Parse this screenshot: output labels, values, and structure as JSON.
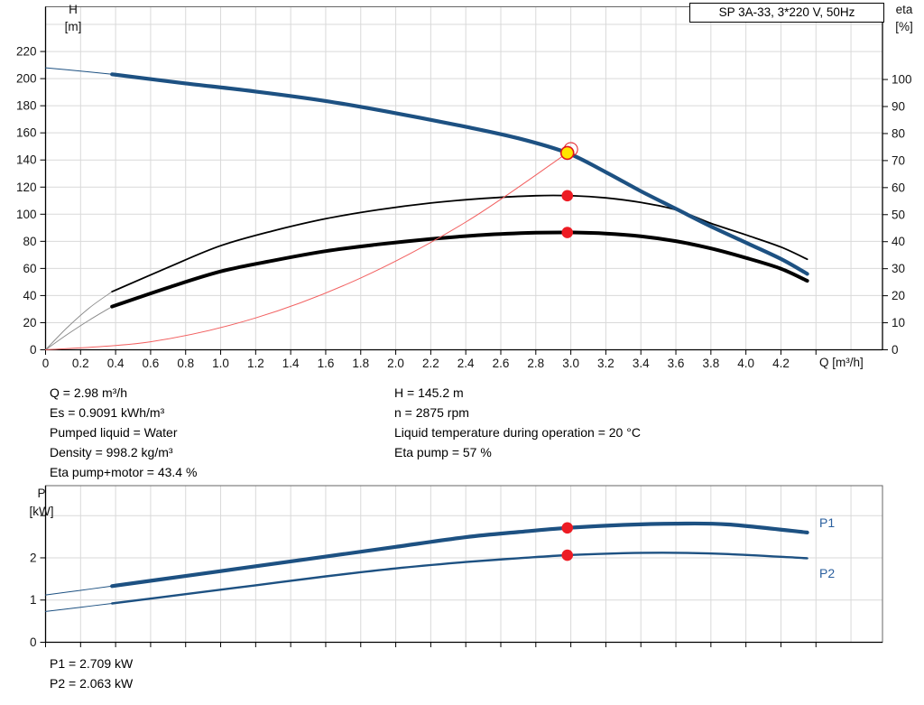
{
  "title_box": "SP 3A-33, 3*220 V, 50Hz",
  "axis_labels": {
    "h": "H",
    "h_unit": "[m]",
    "eta": "eta",
    "eta_unit": "[%]",
    "q": "Q [m³/h]",
    "p": "P",
    "p_unit": "[kW]"
  },
  "curve_labels": {
    "p1": "P1",
    "p2": "P2"
  },
  "annotations": {
    "left": [
      "Q = 2.98 m³/h",
      "Es = 0.9091 kWh/m³",
      "Pumped liquid = Water",
      "Density = 998.2 kg/m³",
      "Eta pump+motor = 43.4 %"
    ],
    "right": [
      "H = 145.2 m",
      "n = 2875 rpm",
      "Liquid temperature during operation = 20 °C",
      "Eta pump = 57 %"
    ],
    "results": [
      "P1 = 2.709 kW",
      "P2 = 2.063 kW"
    ]
  },
  "colors": {
    "curve_blue": "#1d5182",
    "curve_black": "#000000",
    "lead_gray": "#888888",
    "system_red": "#f26060",
    "marker_red": "#ed1c24",
    "duty_yellow": "#ffe600",
    "duty_ring_red": "#e1131d",
    "grid": "#d9d9d9",
    "border": "#666666",
    "axis": "#000000",
    "label_blue": "#2a5f9e"
  },
  "chart_data": [
    {
      "id": "qh-eta-chart",
      "type": "line",
      "title": "SP 3A-33, 3*220 V, 50Hz",
      "xlabel": "Q [m³/h]",
      "ylabel_left": "H [m]",
      "ylabel_right": "eta [%]",
      "grid": true,
      "x_axis": {
        "min": 0,
        "max": 4.78,
        "tick_step": 0.2,
        "tick_max": 4.4,
        "label_max": 4.2,
        "grid_max": 4.6,
        "show_labels": true
      },
      "y_left": {
        "min": 0,
        "max": 253,
        "tick_step": 20,
        "tick_max": 220,
        "label_max": 220,
        "grid_max": 240
      },
      "y_right": {
        "min": 0,
        "max": 126.9,
        "tick_step": 10,
        "tick_max": 100,
        "label_max": 100
      },
      "series": [
        {
          "name": "eta-pump-leadin",
          "axis": "eta",
          "color": "#888888",
          "width": 0.9,
          "points": [
            [
              0,
              0
            ],
            [
              0.12,
              8
            ],
            [
              0.25,
              15.5
            ],
            [
              0.38,
              21.5
            ]
          ]
        },
        {
          "name": "eta-pump-curve",
          "axis": "eta",
          "color": "#000000",
          "width": 1.8,
          "points": [
            [
              0.38,
              21.5
            ],
            [
              0.7,
              30.5
            ],
            [
              1.0,
              38.5
            ],
            [
              1.3,
              44
            ],
            [
              1.6,
              48.5
            ],
            [
              1.9,
              51.8
            ],
            [
              2.2,
              54.3
            ],
            [
              2.5,
              56
            ],
            [
              2.8,
              57
            ],
            [
              3.0,
              57
            ],
            [
              3.2,
              56.2
            ],
            [
              3.4,
              54.5
            ],
            [
              3.6,
              51.8
            ],
            [
              3.8,
              46.8
            ],
            [
              4.0,
              42.5
            ],
            [
              4.2,
              38
            ],
            [
              4.35,
              33.5
            ]
          ]
        },
        {
          "name": "eta-pump-motor-leadin",
          "axis": "eta",
          "color": "#888888",
          "width": 0.9,
          "points": [
            [
              0,
              0
            ],
            [
              0.12,
              5.5
            ],
            [
              0.25,
              11
            ],
            [
              0.38,
              16
            ]
          ]
        },
        {
          "name": "eta-pump-motor-curve",
          "axis": "eta",
          "color": "#000000",
          "width": 4,
          "points": [
            [
              0.38,
              16
            ],
            [
              0.7,
              23
            ],
            [
              1.0,
              29
            ],
            [
              1.3,
              33
            ],
            [
              1.6,
              36.5
            ],
            [
              1.9,
              39
            ],
            [
              2.2,
              41
            ],
            [
              2.5,
              42.5
            ],
            [
              2.8,
              43.3
            ],
            [
              3.0,
              43.4
            ],
            [
              3.2,
              43
            ],
            [
              3.4,
              42
            ],
            [
              3.6,
              40.2
            ],
            [
              3.8,
              37.5
            ],
            [
              4.0,
              34
            ],
            [
              4.2,
              30
            ],
            [
              4.35,
              25.5
            ]
          ]
        },
        {
          "name": "system-curve",
          "axis": "H",
          "color": "#f26060",
          "width": 1,
          "points": [
            [
              0,
              0
            ],
            [
              0.6,
              5.9
            ],
            [
              1.2,
              23.5
            ],
            [
              1.8,
              53
            ],
            [
              2.4,
              94.2
            ],
            [
              2.98,
              145.2
            ]
          ]
        },
        {
          "name": "head-curve-leadin",
          "axis": "H",
          "color": "#1d5182",
          "width": 1,
          "points": [
            [
              0,
              208
            ],
            [
              0.2,
              205.6
            ],
            [
              0.38,
              203.2
            ]
          ]
        },
        {
          "name": "head-curve",
          "axis": "H",
          "color": "#1d5182",
          "width": 4.2,
          "points": [
            [
              0.38,
              203.2
            ],
            [
              0.8,
              196.5
            ],
            [
              1.2,
              190.5
            ],
            [
              1.6,
              183.5
            ],
            [
              2.0,
              174.5
            ],
            [
              2.4,
              164.5
            ],
            [
              2.7,
              156
            ],
            [
              2.98,
              145.2
            ],
            [
              3.2,
              131
            ],
            [
              3.4,
              117
            ],
            [
              3.6,
              104
            ],
            [
              3.8,
              91
            ],
            [
              4.0,
              79
            ],
            [
              4.2,
              67
            ],
            [
              4.35,
              56
            ]
          ]
        }
      ],
      "markers": [
        {
          "name": "duty-point-requested",
          "axis": "H",
          "q": 3.0,
          "value": 147.8,
          "r": 7.5,
          "fill": "none",
          "stroke": "#e1131d",
          "stroke_width": 1
        },
        {
          "name": "duty-point",
          "axis": "H",
          "q": 2.98,
          "value": 145.2,
          "r": 7,
          "fill": "#ffe600",
          "stroke": "#e1131d",
          "stroke_width": 1.6
        },
        {
          "name": "eta-pump-point",
          "axis": "eta",
          "q": 2.98,
          "value": 57,
          "r": 6.3,
          "fill": "#ed1c24",
          "stroke": "none",
          "stroke_width": 0
        },
        {
          "name": "eta-pump-motor-point",
          "axis": "eta",
          "q": 2.98,
          "value": 43.4,
          "r": 6.3,
          "fill": "#ed1c24",
          "stroke": "none",
          "stroke_width": 0
        }
      ],
      "duty_point": {
        "Q": 2.98,
        "H": 145.2,
        "eta_pump": 57,
        "eta_pump_motor": 43.4
      }
    },
    {
      "id": "power-chart",
      "type": "line",
      "xlabel": "",
      "ylabel_left": "P [kW]",
      "grid": true,
      "x_axis": {
        "min": 0,
        "max": 4.78,
        "tick_step": 0.2,
        "tick_max": 4.4,
        "label_max": 4.2,
        "grid_max": 4.6,
        "show_labels": false
      },
      "y_left": {
        "min": 0,
        "max": 3.71,
        "tick_step": 1,
        "tick_max": 3,
        "label_max": 2,
        "grid_max": 3
      },
      "series": [
        {
          "name": "p1-leadin",
          "axis": "P",
          "color": "#1d5182",
          "width": 1,
          "points": [
            [
              0,
              1.12
            ],
            [
              0.2,
              1.23
            ],
            [
              0.38,
              1.33
            ]
          ]
        },
        {
          "name": "p1-curve",
          "axis": "P",
          "color": "#1d5182",
          "width": 4.2,
          "points": [
            [
              0.38,
              1.33
            ],
            [
              0.8,
              1.57
            ],
            [
              1.2,
              1.8
            ],
            [
              1.6,
              2.03
            ],
            [
              2.0,
              2.26
            ],
            [
              2.4,
              2.49
            ],
            [
              2.7,
              2.61
            ],
            [
              2.98,
              2.709
            ],
            [
              3.3,
              2.78
            ],
            [
              3.6,
              2.81
            ],
            [
              3.9,
              2.79
            ],
            [
              4.35,
              2.6
            ]
          ]
        },
        {
          "name": "p2-leadin",
          "axis": "P",
          "color": "#1d5182",
          "width": 1,
          "points": [
            [
              0,
              0.73
            ],
            [
              0.2,
              0.83
            ],
            [
              0.38,
              0.92
            ]
          ]
        },
        {
          "name": "p2-curve",
          "axis": "P",
          "color": "#1d5182",
          "width": 2.4,
          "points": [
            [
              0.38,
              0.92
            ],
            [
              0.8,
              1.14
            ],
            [
              1.2,
              1.35
            ],
            [
              1.6,
              1.56
            ],
            [
              2.0,
              1.75
            ],
            [
              2.4,
              1.9
            ],
            [
              2.7,
              1.99
            ],
            [
              2.98,
              2.063
            ],
            [
              3.3,
              2.11
            ],
            [
              3.6,
              2.12
            ],
            [
              3.9,
              2.09
            ],
            [
              4.35,
              1.99
            ]
          ]
        }
      ],
      "markers": [
        {
          "name": "p1-point",
          "axis": "P",
          "q": 2.98,
          "value": 2.709,
          "r": 6.3,
          "fill": "#ed1c24",
          "stroke": "none",
          "stroke_width": 0
        },
        {
          "name": "p2-point",
          "axis": "P",
          "q": 2.98,
          "value": 2.063,
          "r": 6.3,
          "fill": "#ed1c24",
          "stroke": "none",
          "stroke_width": 0
        }
      ],
      "duty_point": {
        "Q": 2.98,
        "P1": 2.709,
        "P2": 2.063
      }
    }
  ]
}
